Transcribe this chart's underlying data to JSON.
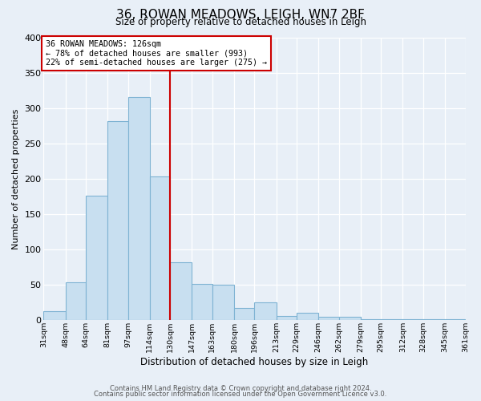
{
  "title_line1": "36, ROWAN MEADOWS, LEIGH, WN7 2BF",
  "title_line2": "Size of property relative to detached houses in Leigh",
  "xlabel": "Distribution of detached houses by size in Leigh",
  "ylabel": "Number of detached properties",
  "bin_labels": [
    "31sqm",
    "48sqm",
    "64sqm",
    "81sqm",
    "97sqm",
    "114sqm",
    "130sqm",
    "147sqm",
    "163sqm",
    "180sqm",
    "196sqm",
    "213sqm",
    "229sqm",
    "246sqm",
    "262sqm",
    "279sqm",
    "295sqm",
    "312sqm",
    "328sqm",
    "345sqm",
    "361sqm"
  ],
  "bin_edges": [
    31,
    48,
    64,
    81,
    97,
    114,
    130,
    147,
    163,
    180,
    196,
    213,
    229,
    246,
    262,
    279,
    295,
    312,
    328,
    345,
    361
  ],
  "bar_heights": [
    13,
    54,
    176,
    281,
    315,
    203,
    82,
    51,
    50,
    17,
    25,
    6,
    10,
    5,
    5,
    1,
    1,
    1,
    1,
    1
  ],
  "bar_color": "#c8dff0",
  "bar_edgecolor": "#7fb3d3",
  "property_size": 126,
  "vline_color": "#cc0000",
  "vline_x": 130,
  "annotation_title": "36 ROWAN MEADOWS: 126sqm",
  "annotation_line2": "← 78% of detached houses are smaller (993)",
  "annotation_line3": "22% of semi-detached houses are larger (275) →",
  "annotation_box_edgecolor": "#cc0000",
  "ylim": [
    0,
    400
  ],
  "yticks": [
    0,
    50,
    100,
    150,
    200,
    250,
    300,
    350,
    400
  ],
  "footer_line1": "Contains HM Land Registry data © Crown copyright and database right 2024.",
  "footer_line2": "Contains public sector information licensed under the Open Government Licence v3.0.",
  "bg_color": "#e8eff7",
  "plot_bg_color": "#e8eff7"
}
